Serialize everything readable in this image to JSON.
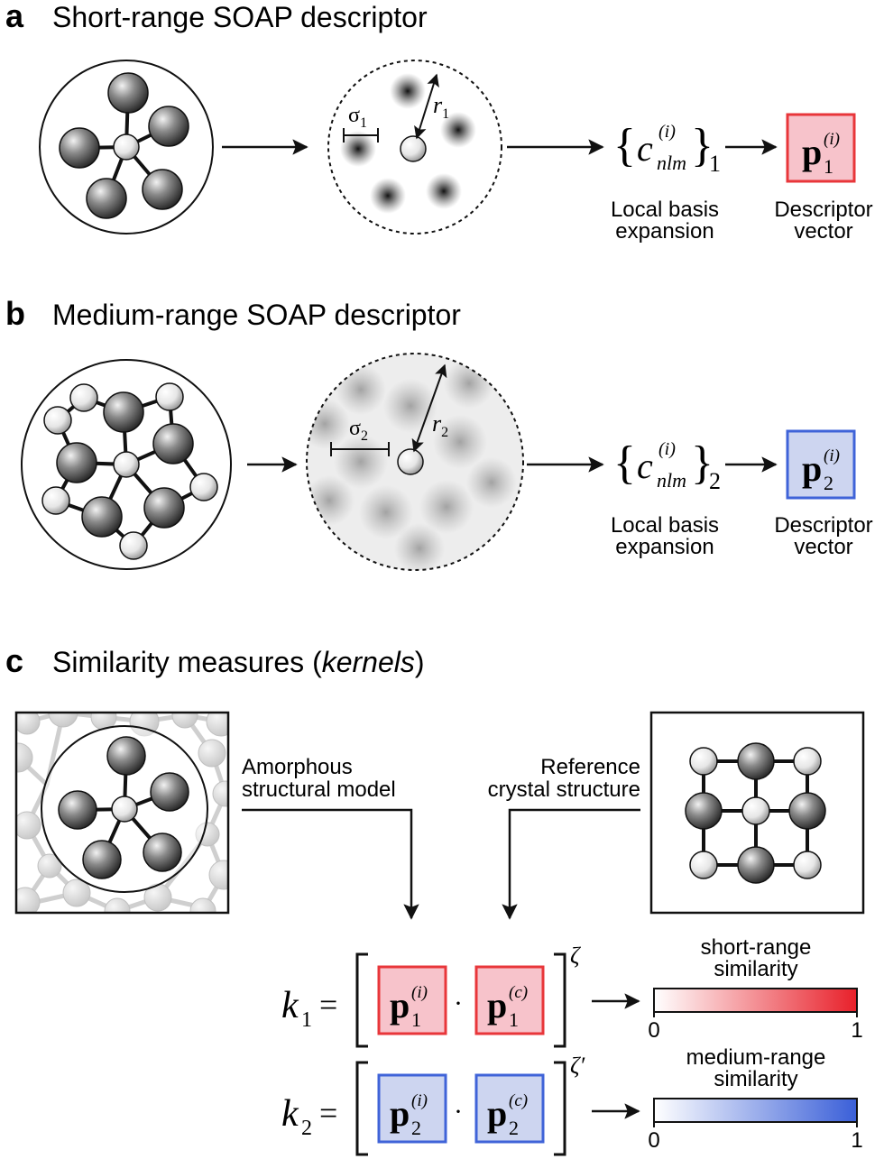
{
  "panel_a": {
    "letter": "a",
    "title": "Short-range SOAP descriptor",
    "sigma": "σ",
    "sigma_sub": "1",
    "r": "r",
    "r_sub": "1",
    "coef_main": "c",
    "coef_sup": "(i)",
    "coef_sub": "nlm",
    "brace_sub": "1",
    "basis_line1": "Local basis",
    "basis_line2": "expansion",
    "p_main": "p",
    "p_sub": "1",
    "p_sup": "(i)",
    "desc_line1": "Descriptor",
    "desc_line2": "vector"
  },
  "panel_b": {
    "letter": "b",
    "title": "Medium-range SOAP descriptor",
    "sigma": "σ",
    "sigma_sub": "2",
    "r": "r",
    "r_sub": "2",
    "coef_main": "c",
    "coef_sup": "(i)",
    "coef_sub": "nlm",
    "brace_sub": "2",
    "basis_line1": "Local basis",
    "basis_line2": "expansion",
    "p_main": "p",
    "p_sub": "2",
    "p_sup": "(i)",
    "desc_line1": "Descriptor",
    "desc_line2": "vector"
  },
  "panel_c": {
    "letter": "c",
    "title_prefix": "Similarity measures (",
    "title_italic": "kernels",
    "title_suffix": ")",
    "amorph_line1": "Amorphous",
    "amorph_line2": "structural model",
    "ref_line1": "Reference",
    "ref_line2": "crystal structure",
    "k1_main": "k",
    "k1_sub": "1",
    "k2_main": "k",
    "k2_sub": "2",
    "equals": "=",
    "dot": "·",
    "zeta1": "ζ",
    "zeta2": "ζ′",
    "p_main": "p",
    "sup_i": "(i)",
    "sup_c": "(c)",
    "sub_1": "1",
    "sub_2": "2",
    "bar1_line1": "short-range",
    "bar1_line2": "similarity",
    "bar2_line1": "medium-range",
    "bar2_line2": "similarity",
    "bar_min": "0",
    "bar_max": "1"
  },
  "colors": {
    "red_accent": "#e8363a",
    "red_fill": "#f7c3cb",
    "blue_accent": "#3f63d8",
    "blue_fill": "#cdd5f0",
    "atom_dark": "#555555",
    "atom_light": "#eeeeee"
  }
}
